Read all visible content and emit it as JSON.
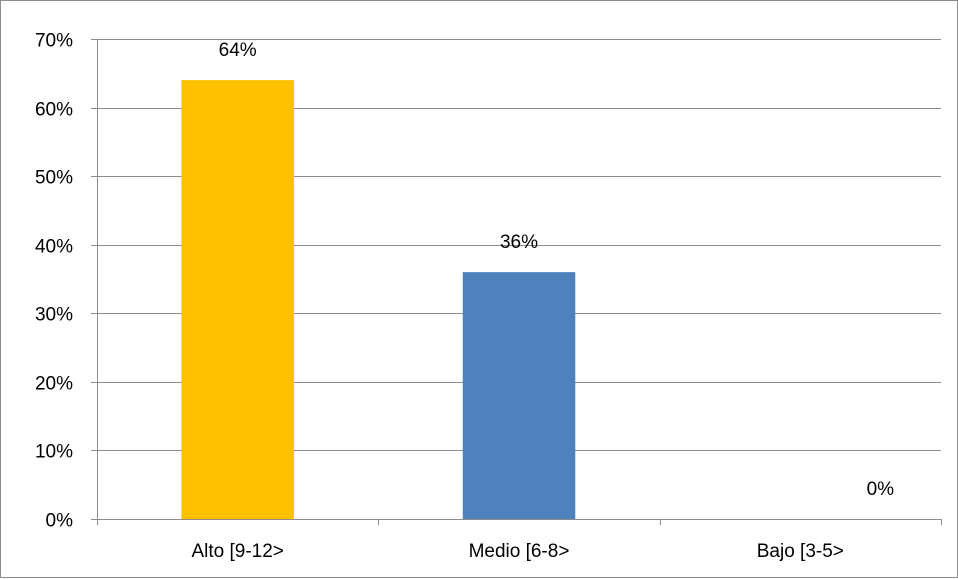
{
  "chart_data": {
    "type": "bar",
    "title": "",
    "xlabel": "",
    "ylabel": "",
    "categories": [
      "Alto [9-12>",
      "Medio [6-8>",
      "Bajo [3-5>"
    ],
    "values": [
      64,
      36,
      0
    ],
    "data_labels": [
      "64%",
      "36%",
      "0%"
    ],
    "bar_colors": [
      "#FFC000",
      "#4F81BD",
      "#4F81BD"
    ],
    "ylim": [
      0,
      70
    ],
    "yticks": [
      0,
      10,
      20,
      30,
      40,
      50,
      60,
      70
    ],
    "ytick_labels": [
      "0%",
      "10%",
      "20%",
      "30%",
      "40%",
      "50%",
      "60%",
      "70%"
    ],
    "grid": true,
    "legend": "none"
  }
}
